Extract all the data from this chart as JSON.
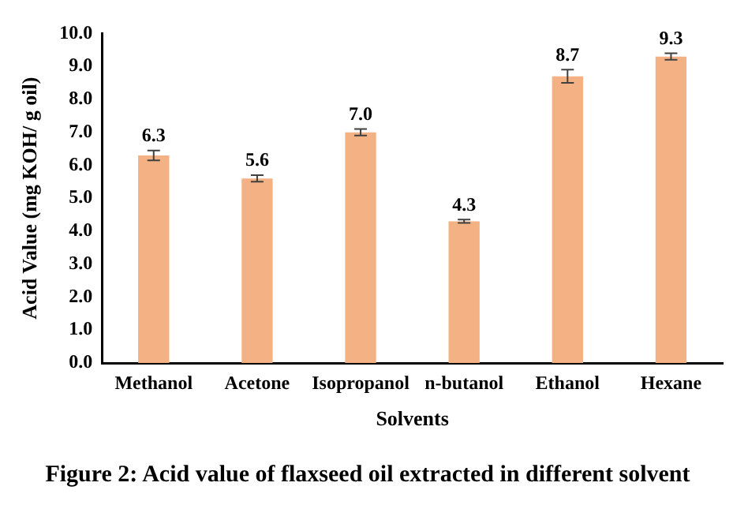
{
  "chart_data": {
    "type": "bar",
    "title": "Figure 2: Acid value of flaxseed oil extracted in different solvent",
    "xlabel": "Solvents",
    "ylabel": "Acid Value (mg KOH/ g oil)",
    "categories": [
      "Methanol",
      "Acetone",
      "Isopropanol",
      "n-butanol",
      "Ethanol",
      "Hexane"
    ],
    "values": [
      6.3,
      5.6,
      7.0,
      4.3,
      8.7,
      9.3
    ],
    "errors": [
      0.15,
      0.1,
      0.1,
      0.05,
      0.2,
      0.1
    ],
    "color": "#f4b183",
    "ylim": [
      0,
      10
    ],
    "yticks": [
      {
        "value": 0,
        "label": "0.0"
      },
      {
        "value": 1,
        "label": "1.0"
      },
      {
        "value": 2,
        "label": "2.0"
      },
      {
        "value": 3,
        "label": "3.0"
      },
      {
        "value": 4,
        "label": "4.0"
      },
      {
        "value": 5,
        "label": "5.0"
      },
      {
        "value": 6,
        "label": "6.0"
      },
      {
        "value": 7,
        "label": "7.0"
      },
      {
        "value": 8,
        "label": "8.0"
      },
      {
        "value": 9,
        "label": "9.0"
      },
      {
        "value": 10,
        "label": "10.0"
      }
    ],
    "value_labels": [
      "6.3",
      "5.6",
      "7.0",
      "4.3",
      "8.7",
      "9.3"
    ],
    "grid": false,
    "legend": false
  }
}
